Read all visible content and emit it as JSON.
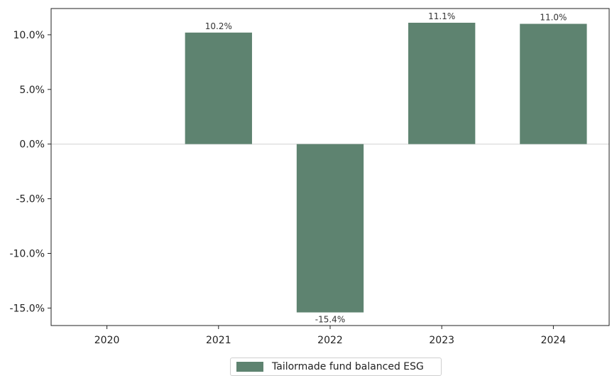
{
  "chart_data": {
    "type": "bar",
    "categories": [
      "2020",
      "2021",
      "2022",
      "2023",
      "2024"
    ],
    "series": [
      {
        "name": "Tailormade fund balanced ESG",
        "values": [
          null,
          10.2,
          -15.4,
          11.1,
          11.0
        ],
        "value_labels": [
          "",
          "10.2%",
          "-15.4%",
          "11.1%",
          "11.0%"
        ],
        "color": "#5e8370"
      }
    ],
    "y_ticks": [
      10,
      5,
      0,
      -5,
      -10,
      -15
    ],
    "y_tick_labels": [
      "10.0%",
      "5.0%",
      "0.0%",
      "-5.0%",
      "-10.0%",
      "-15.0%"
    ],
    "ylim": [
      -16.6,
      12.4
    ],
    "grid": false,
    "legend_position": "bottom-center",
    "zero_line_color": "#e0e0e0"
  }
}
